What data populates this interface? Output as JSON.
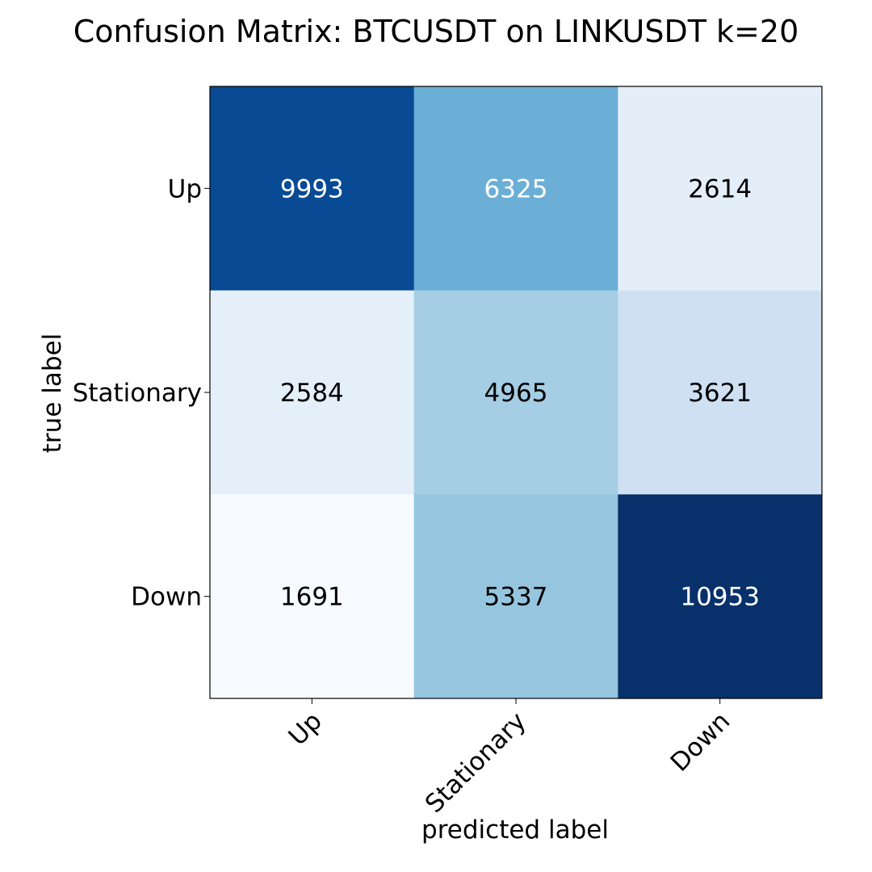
{
  "chart_data": {
    "type": "heatmap",
    "title": "Confusion Matrix: BTCUSDT on LINKUSDT k=20",
    "xlabel": "predicted label",
    "ylabel": "true label",
    "x_categories": [
      "Up",
      "Stationary",
      "Down"
    ],
    "y_categories": [
      "Up",
      "Stationary",
      "Down"
    ],
    "values": [
      [
        9993,
        6325,
        2614
      ],
      [
        2584,
        4965,
        3621
      ],
      [
        1691,
        5337,
        10953
      ]
    ],
    "colormap": "Blues",
    "color_range": [
      1691,
      10953
    ],
    "grid": false,
    "colors": {
      "cmap_stops": [
        "#f7fbff",
        "#deebf7",
        "#c6dbef",
        "#9ecae1",
        "#6baed6",
        "#4292c6",
        "#2171b5",
        "#08519c",
        "#08306b"
      ],
      "text_dark": "#000000",
      "text_light": "#ffffff"
    }
  }
}
